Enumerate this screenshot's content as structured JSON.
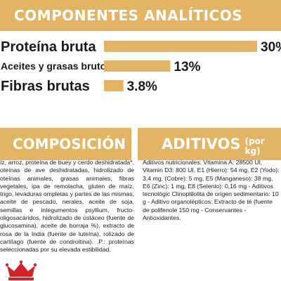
{
  "header": {
    "title": "COMPONENTES ANALÍTICOS"
  },
  "chart_data": {
    "type": "bar",
    "categories": [
      "Proteína bruta",
      "Aceites y grasas brutos",
      "Fibras brutas"
    ],
    "values": [
      30,
      13,
      3.8
    ],
    "value_labels": [
      "30%",
      "13%",
      "3.8%"
    ],
    "unit": "%",
    "ylim": [
      0,
      30
    ],
    "bar_color": "#e2b463"
  },
  "composicion": {
    "title": "COMPOSICIÓN",
    "text": "íz, arroz, proteína de buey y cerdo deshidratada*, oteínas de ave deshidratadas, hidrolizado de oteínas animales, grasas animales, fibras vegetales, ipa de remolacha, gluten de maíz, trigo, levaduras ompletas y partes de las mismas, aceite de pescado, nerales, aceite de soja, semillas e integumentos psyllium, fructo-oligosacáridos, hidrolizado de ústáceo (fuente de glucosamina), aceite de borraja %), extracto de rosa de la India (fuente de luteína), rolizado de cartílago (fuente de condroitina). .P.: proteínas seleccionadas por su elevada estibilidad."
  },
  "aditivos": {
    "title": "ADITIVOS",
    "unit": "(por kg)",
    "text": "Aditivos nutricionales: Vitamina A: 28500 UI, Vitamin D3: 800 UI, E1 (Hierro): 54 mg, E2 (Yodo): 3,4 mg, (Cobre): 5 mg, E5 (Manganeso): 38 mg, E6 (Zinc): 1 mg, E8 (Selenio): 0,16 mg - Aditivos tecnológic Clinoptilolita de origen sedimentario: 10 g - Aditivo organolépticos: Extracto de té (fuente de polifenole 150 mg - Conservantes - Antioxidantes."
  },
  "colors": {
    "accent": "#e2b463",
    "brand_red": "#d2232a"
  },
  "logo": {
    "icon": "crown-icon"
  }
}
